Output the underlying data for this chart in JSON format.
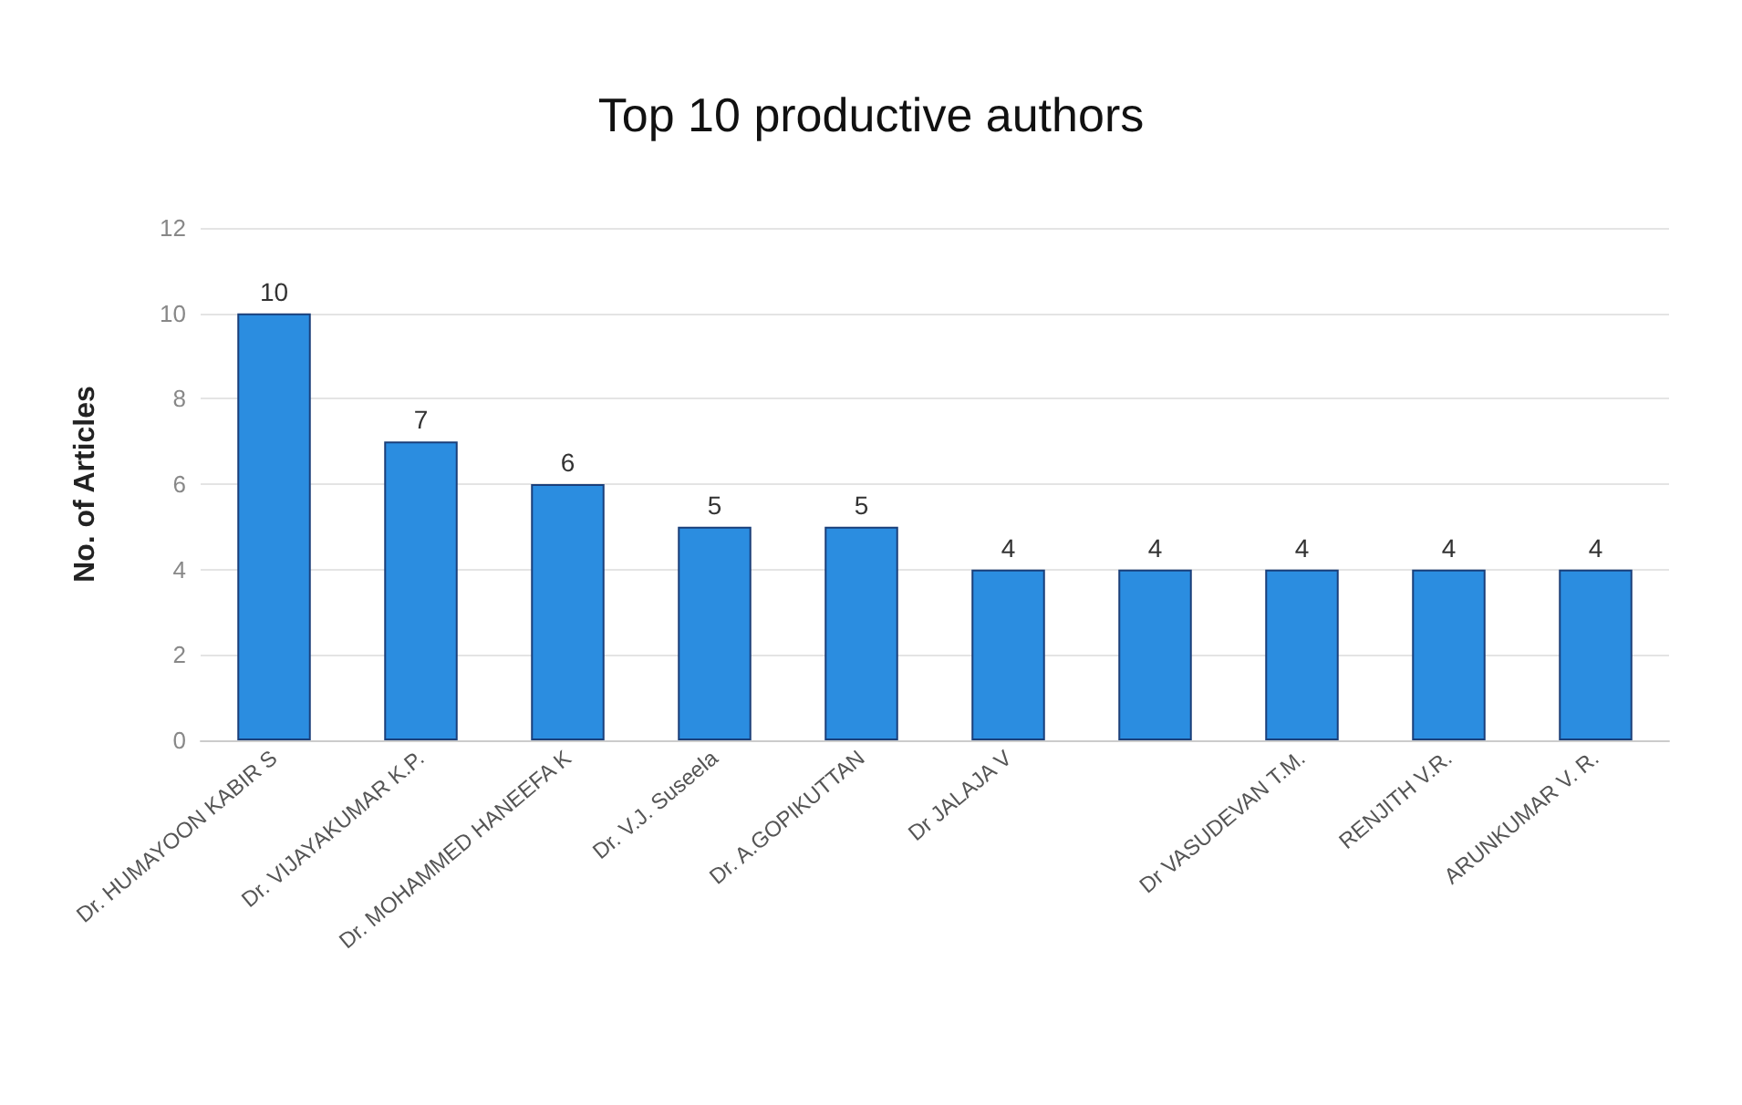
{
  "chart_data": {
    "type": "bar",
    "title": "Top 10 productive authors",
    "ylabel": "No. of Articles",
    "categories": [
      "Dr. HUMAYOON KABIR S",
      "Dr. VIJAYAKUMAR K.P.",
      "Dr. MOHAMMED HANEEFA K",
      "Dr. V.J. Suseela",
      "Dr. A.GOPIKUTTAN",
      "Dr JALAJA V",
      null,
      "Dr VASUDEVAN T.M.",
      "RENJITH V.R.",
      "ARUNKUMAR V. R."
    ],
    "values": [
      10,
      7,
      6,
      5,
      5,
      4,
      4,
      4,
      4,
      4
    ],
    "color": "#2b8de0",
    "ylim": [
      0,
      12
    ],
    "yticks": [
      0,
      2,
      4,
      6,
      8,
      10,
      12
    ],
    "grid": "y",
    "data_labels": true
  }
}
